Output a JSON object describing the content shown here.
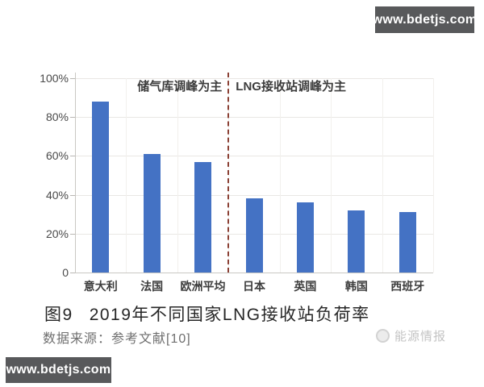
{
  "banners": {
    "top_right": "www.bdetjs.com",
    "bottom_left": "www.bdetjs.com"
  },
  "chart_data": {
    "type": "bar",
    "title": "2019年不同国家LNG接收站负荷率",
    "categories": [
      "意大利",
      "法国",
      "欧洲平均",
      "日本",
      "英国",
      "韩国",
      "西班牙"
    ],
    "values": [
      88,
      61,
      57,
      38,
      36,
      32,
      31
    ],
    "unit": "%",
    "ylim": [
      0,
      100
    ],
    "ytick_labels": [
      "100%",
      "80%",
      "60%",
      "40%",
      "20%",
      "0"
    ],
    "ytick_values": [
      100,
      80,
      60,
      40,
      20,
      0
    ],
    "grid": "horizontal major + faint vertical category boundaries",
    "bar_color": "#4472c4",
    "annotations": {
      "left_group_label": "储气库调峰为主",
      "right_group_label": "LNG接收站调峰为主",
      "divider_after_category": "欧洲平均",
      "divider_style": "dashed",
      "divider_color": "#8b4034"
    }
  },
  "caption": {
    "figure_label": "图9",
    "title": "2019年不同国家LNG接收站负荷率"
  },
  "source_line": "数据来源：参考文献[10]",
  "watermark": {
    "icon": "energy-intel-logo-icon",
    "text": "能源情报"
  },
  "colors": {
    "banner_bg": "#58595b",
    "bar": "#4472c4",
    "divider": "#8b4034",
    "gridline": "#e9e7e4",
    "caption_text": "#262626",
    "source_text": "#6f6f6f",
    "watermark_text": "#c4c4c4"
  }
}
